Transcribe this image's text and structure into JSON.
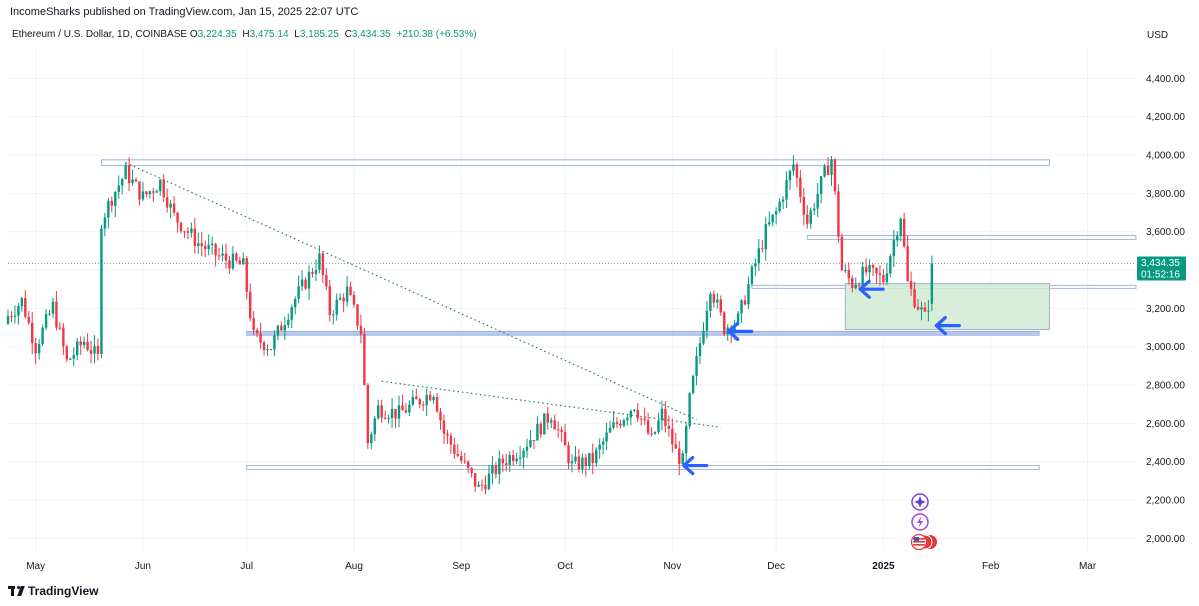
{
  "header": {
    "publisher": "IncomeSharks published on TradingView.com, Jan 15, 2025 22:07 UTC"
  },
  "symbol": {
    "name": "Ethereum / U.S. Dollar, 1D, COINBASE",
    "o_label": "O",
    "o_value": "3,224.35",
    "h_label": "H",
    "h_value": "3,475.14",
    "l_label": "L",
    "l_value": "3,185.25",
    "c_label": "C",
    "c_value": "3,434.35",
    "change": "+210.38 (+6.53%)"
  },
  "currency": "USD",
  "price_tag": {
    "price": "3,434.35",
    "countdown": "01:52:16"
  },
  "footer": {
    "brand": "TradingView"
  },
  "colors": {
    "up": "#089981",
    "down": "#f23645",
    "zone_fill": "#d1ead4",
    "band_fill": "#aabff2",
    "box_stroke": "#9fb4d6",
    "arrow": "#2962ff",
    "trend": "#2a7a6a"
  },
  "icons": [
    "sparkle-icon",
    "flash-icon",
    "us-flag-icon"
  ],
  "chart_data": {
    "type": "candlestick",
    "title": "",
    "xlabel": "",
    "ylabel": "",
    "ylim": [
      1950,
      4600
    ],
    "y_ticks": [
      2000,
      2200,
      2400,
      2600,
      2800,
      3000,
      3200,
      3400,
      3600,
      3800,
      4000,
      4200,
      4400
    ],
    "y_tick_labels": [
      "2,000.00",
      "2,200.00",
      "2,400.00",
      "2,600.00",
      "2,800.00",
      "3,000.00",
      "3,200.00",
      "3,400.00",
      "3,600.00",
      "3,800.00",
      "4,000.00",
      "4,200.00",
      "4,400.00"
    ],
    "x_range": [
      "2024-04-23",
      "2025-03-15"
    ],
    "x_ticks": [
      {
        "date": "2024-05-01",
        "label": "May"
      },
      {
        "date": "2024-06-01",
        "label": "Jun"
      },
      {
        "date": "2024-07-01",
        "label": "Jul"
      },
      {
        "date": "2024-08-01",
        "label": "Aug"
      },
      {
        "date": "2024-09-01",
        "label": "Sep"
      },
      {
        "date": "2024-10-01",
        "label": "Oct"
      },
      {
        "date": "2024-11-01",
        "label": "Nov"
      },
      {
        "date": "2024-12-01",
        "label": "Dec"
      },
      {
        "date": "2025-01-01",
        "label": "2025"
      },
      {
        "date": "2025-02-01",
        "label": "Feb"
      },
      {
        "date": "2025-03-01",
        "label": "Mar"
      }
    ],
    "anchors": [
      [
        "2024-04-23",
        3160
      ],
      [
        "2024-04-27",
        3240
      ],
      [
        "2024-05-01",
        3000
      ],
      [
        "2024-05-06",
        3210
      ],
      [
        "2024-05-10",
        2920
      ],
      [
        "2024-05-15",
        3030
      ],
      [
        "2024-05-19",
        2940
      ],
      [
        "2024-05-20",
        3660
      ],
      [
        "2024-05-23",
        3780
      ],
      [
        "2024-05-27",
        3910
      ],
      [
        "2024-06-01",
        3780
      ],
      [
        "2024-06-06",
        3860
      ],
      [
        "2024-06-10",
        3680
      ],
      [
        "2024-06-17",
        3540
      ],
      [
        "2024-06-23",
        3470
      ],
      [
        "2024-06-30",
        3420
      ],
      [
        "2024-07-03",
        3050
      ],
      [
        "2024-07-08",
        3000
      ],
      [
        "2024-07-14",
        3220
      ],
      [
        "2024-07-22",
        3460
      ],
      [
        "2024-07-25",
        3180
      ],
      [
        "2024-07-30",
        3290
      ],
      [
        "2024-08-03",
        3080
      ],
      [
        "2024-08-05",
        2500
      ],
      [
        "2024-08-08",
        2680
      ],
      [
        "2024-08-14",
        2650
      ],
      [
        "2024-08-24",
        2770
      ],
      [
        "2024-08-27",
        2550
      ],
      [
        "2024-09-06",
        2260
      ],
      [
        "2024-09-13",
        2400
      ],
      [
        "2024-09-19",
        2480
      ],
      [
        "2024-09-27",
        2650
      ],
      [
        "2024-10-03",
        2380
      ],
      [
        "2024-10-09",
        2410
      ],
      [
        "2024-10-14",
        2560
      ],
      [
        "2024-10-21",
        2700
      ],
      [
        "2024-10-26",
        2510
      ],
      [
        "2024-10-29",
        2650
      ],
      [
        "2024-11-02",
        2450
      ],
      [
        "2024-11-04",
        2400
      ],
      [
        "2024-11-06",
        2720
      ],
      [
        "2024-11-10",
        3120
      ],
      [
        "2024-11-12",
        3320
      ],
      [
        "2024-11-16",
        3100
      ],
      [
        "2024-11-20",
        3140
      ],
      [
        "2024-11-24",
        3380
      ],
      [
        "2024-11-28",
        3600
      ],
      [
        "2024-12-01",
        3700
      ],
      [
        "2024-12-06",
        3950
      ],
      [
        "2024-12-10",
        3650
      ],
      [
        "2024-12-15",
        3900
      ],
      [
        "2024-12-17",
        3980
      ],
      [
        "2024-12-20",
        3400
      ],
      [
        "2024-12-23",
        3330
      ],
      [
        "2024-12-27",
        3390
      ],
      [
        "2025-01-01",
        3350
      ],
      [
        "2025-01-06",
        3690
      ],
      [
        "2025-01-08",
        3330
      ],
      [
        "2025-01-10",
        3250
      ],
      [
        "2025-01-13",
        3150
      ],
      [
        "2025-01-14",
        3224
      ],
      [
        "2025-01-15",
        3434
      ]
    ],
    "last_candle": {
      "date": "2025-01-15",
      "open": 3224.35,
      "high": 3475.14,
      "low": 3185.25,
      "close": 3434.35
    },
    "last_price_line": 3434.35,
    "zones": [
      {
        "name": "top-resistance-box",
        "from": "2024-05-20",
        "to": "2025-02-18",
        "low": 3945,
        "high": 3975,
        "fill": "#ffffff"
      },
      {
        "name": "mid-resistance-box",
        "from": "2024-12-10",
        "to": "2025-03-15",
        "low": 3560,
        "high": 3580,
        "fill": "#ffffff"
      },
      {
        "name": "support-box-3300",
        "from": "2024-11-24",
        "to": "2025-03-15",
        "low": 3305,
        "high": 3320,
        "fill": "#ffffff"
      },
      {
        "name": "support-band-3070",
        "from": "2024-07-01",
        "to": "2025-02-15",
        "low": 3060,
        "high": 3080,
        "fill": "#aabff2"
      },
      {
        "name": "bottom-support-box",
        "from": "2024-07-01",
        "to": "2025-02-15",
        "low": 2360,
        "high": 2380,
        "fill": "#ffffff"
      },
      {
        "name": "green-demand-zone",
        "from": "2024-12-21",
        "to": "2025-02-18",
        "low": 3090,
        "high": 3330,
        "fill": "#d1ead4"
      }
    ],
    "trendlines": [
      {
        "name": "descending-trendline",
        "from": [
          "2024-05-27",
          3960
        ],
        "to": [
          "2024-11-08",
          2620
        ]
      },
      {
        "name": "range-top-trendline",
        "from": [
          "2024-08-09",
          2820
        ],
        "to": [
          "2024-11-15",
          2580
        ]
      }
    ],
    "arrows": [
      {
        "name": "arrow-1",
        "date": "2024-11-04",
        "price": 2380
      },
      {
        "name": "arrow-2",
        "date": "2024-11-17",
        "price": 3080
      },
      {
        "name": "arrow-3",
        "date": "2024-12-25",
        "price": 3300
      },
      {
        "name": "arrow-4",
        "date": "2025-01-16",
        "price": 3110
      }
    ]
  }
}
